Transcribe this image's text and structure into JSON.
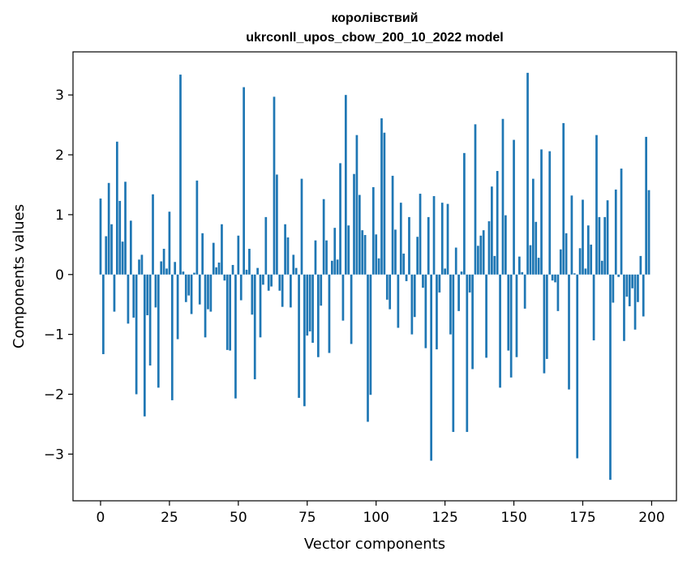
{
  "chart_data": {
    "type": "bar",
    "title": "королівствий",
    "subtitle": "ukrconll_upos_cbow_200_10_2022 model",
    "xlabel": "Vector components",
    "ylabel": "Components values",
    "xlim": [
      -10,
      209
    ],
    "ylim": [
      -3.78,
      3.72
    ],
    "xticks": [
      0,
      25,
      50,
      75,
      100,
      125,
      150,
      175,
      200
    ],
    "yticks": [
      -3,
      -2,
      -1,
      0,
      1,
      2,
      3
    ],
    "xtick_labels": [
      "0",
      "25",
      "50",
      "75",
      "100",
      "125",
      "150",
      "175",
      "200"
    ],
    "ytick_labels": [
      "−3",
      "−2",
      "−1",
      "0",
      "1",
      "2",
      "3"
    ],
    "grid": false,
    "bar_color": "#1f77b4",
    "series": [
      {
        "values": [
          1.27,
          -1.33,
          0.64,
          1.53,
          0.84,
          -0.62,
          2.22,
          1.23,
          0.55,
          1.55,
          -0.82,
          0.9,
          -0.72,
          -2.0,
          0.25,
          0.33,
          -2.37,
          -0.68,
          -1.52,
          1.34,
          -0.55,
          -1.89,
          0.22,
          0.43,
          0.1,
          1.05,
          -2.1,
          0.21,
          -1.08,
          3.34,
          0.05,
          -0.46,
          -0.35,
          -0.66,
          0.03,
          1.57,
          -0.5,
          0.69,
          -1.05,
          -0.58,
          -0.62,
          0.53,
          0.12,
          0.2,
          0.84,
          -0.1,
          -1.26,
          -1.27,
          0.16,
          -2.07,
          0.65,
          -0.43,
          3.13,
          0.08,
          0.43,
          -0.67,
          -1.75,
          0.11,
          -1.05,
          -0.17,
          0.96,
          -0.27,
          -0.2,
          2.97,
          1.67,
          -0.27,
          -0.54,
          0.84,
          0.62,
          -0.55,
          0.33,
          0.11,
          -2.06,
          1.6,
          -2.2,
          -1.02,
          -0.95,
          -1.14,
          0.57,
          -1.38,
          -0.52,
          1.26,
          0.57,
          -1.31,
          0.23,
          0.78,
          0.25,
          1.86,
          -0.77,
          3.0,
          0.82,
          -1.16,
          1.68,
          2.33,
          1.33,
          0.74,
          0.66,
          -2.46,
          -2.01,
          1.46,
          0.67,
          0.27,
          2.61,
          2.37,
          -0.42,
          -0.58,
          1.65,
          0.75,
          -0.89,
          1.2,
          0.35,
          -0.11,
          0.96,
          -1.0,
          -0.71,
          0.63,
          1.35,
          -0.22,
          -1.23,
          0.96,
          -3.11,
          1.31,
          -1.25,
          -0.3,
          1.2,
          0.1,
          1.18,
          -1.0,
          -2.63,
          0.45,
          -0.61,
          0.05,
          2.03,
          -2.63,
          -0.3,
          -1.58,
          2.51,
          0.48,
          0.65,
          0.74,
          -1.39,
          0.89,
          1.47,
          0.31,
          1.73,
          -1.89,
          2.6,
          0.99,
          -1.27,
          -1.72,
          2.25,
          -1.38,
          0.3,
          0.04,
          -0.57,
          3.37,
          0.49,
          1.6,
          0.88,
          0.28,
          2.09,
          -1.65,
          -1.41,
          2.06,
          -0.1,
          -0.13,
          -0.61,
          0.42,
          2.53,
          0.69,
          -1.92,
          1.32,
          0.02,
          -3.07,
          0.44,
          1.25,
          0.1,
          0.82,
          0.5,
          -1.1,
          2.33,
          0.96,
          0.23,
          0.96,
          1.24,
          -3.43,
          -0.47,
          1.42,
          -0.04,
          1.77,
          -1.11,
          -0.37,
          -0.53,
          -0.23,
          -0.92,
          -0.46,
          0.31,
          -0.7,
          2.3,
          1.41
        ]
      }
    ]
  }
}
